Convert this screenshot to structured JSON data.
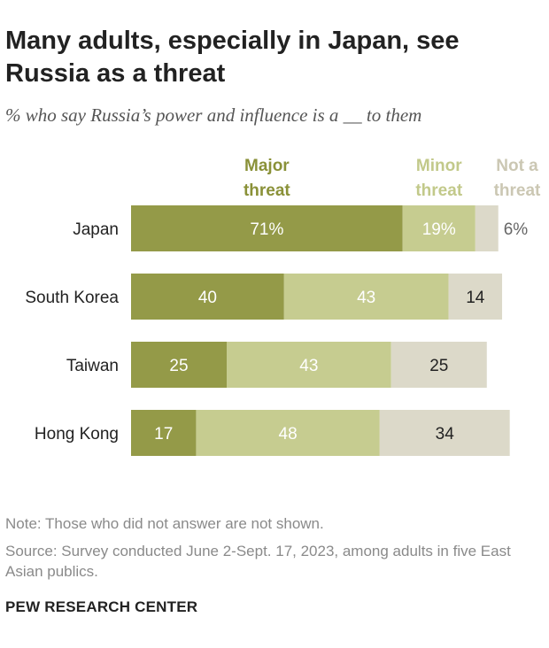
{
  "title": "Many adults, especially in Japan, see Russia as a threat",
  "subtitle": "% who say Russia’s power and influence is a __ to them",
  "note": "Note: Those who did not answer are not shown.",
  "source": "Source: Survey conducted June 2-Sept. 17, 2023, among adults in five East Asian publics.",
  "brand": "PEW RESEARCH CENTER",
  "colors": {
    "major": "#949a48",
    "minor": "#c6cc90",
    "not": "#dcd9c9",
    "major_label": "#8a9138",
    "minor_label": "#c2c98a",
    "not_label": "#cbc7b3"
  },
  "chart_data": {
    "type": "bar",
    "orientation": "horizontal",
    "stacked": true,
    "categories": [
      "Japan",
      "South Korea",
      "Taiwan",
      "Hong Kong"
    ],
    "series": [
      {
        "name": "Major threat",
        "values": [
          71,
          40,
          25,
          17
        ],
        "labels": [
          "71%",
          "40",
          "25",
          "17"
        ]
      },
      {
        "name": "Minor threat",
        "values": [
          19,
          43,
          43,
          48
        ],
        "labels": [
          "19%",
          "43",
          "43",
          "48"
        ]
      },
      {
        "name": "Not a threat",
        "values": [
          6,
          14,
          25,
          34
        ],
        "labels": [
          "6%",
          "14",
          "25",
          "34"
        ]
      }
    ],
    "legend_lines": [
      [
        "Major",
        "threat"
      ],
      [
        "Minor",
        "threat"
      ],
      [
        "Not a",
        "threat"
      ]
    ],
    "legend_position": "top"
  }
}
